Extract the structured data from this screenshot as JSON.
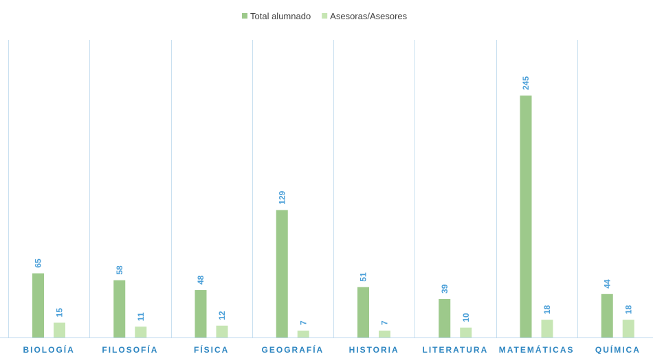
{
  "chart_data": {
    "type": "bar",
    "title": "",
    "xlabel": "",
    "ylabel": "",
    "categories": [
      "BIOLOGÍA",
      "FILOSOFÍA",
      "FÍSICA",
      "GEOGRAFÍA",
      "HISTORIA",
      "LITERATURA",
      "MATEMÁTICAS",
      "QUÍMICA"
    ],
    "series": [
      {
        "name": "Total alumnado",
        "values": [
          65,
          58,
          48,
          129,
          51,
          39,
          245,
          44
        ],
        "color": "#9dc98b"
      },
      {
        "name": "Asesoras/Asesores",
        "values": [
          15,
          11,
          12,
          7,
          7,
          10,
          18,
          18
        ],
        "color": "#c6e5b3"
      }
    ],
    "ylim": [
      0,
      270
    ],
    "grid": false,
    "category_separators": true,
    "legend_position": "top-center",
    "data_labels": true,
    "data_label_orientation": "vertical",
    "colors": {
      "separator": "#c9e0f0",
      "axis": "#bdd7ee",
      "label": "#4a9fd8",
      "category_text": "#2e86c1"
    }
  }
}
